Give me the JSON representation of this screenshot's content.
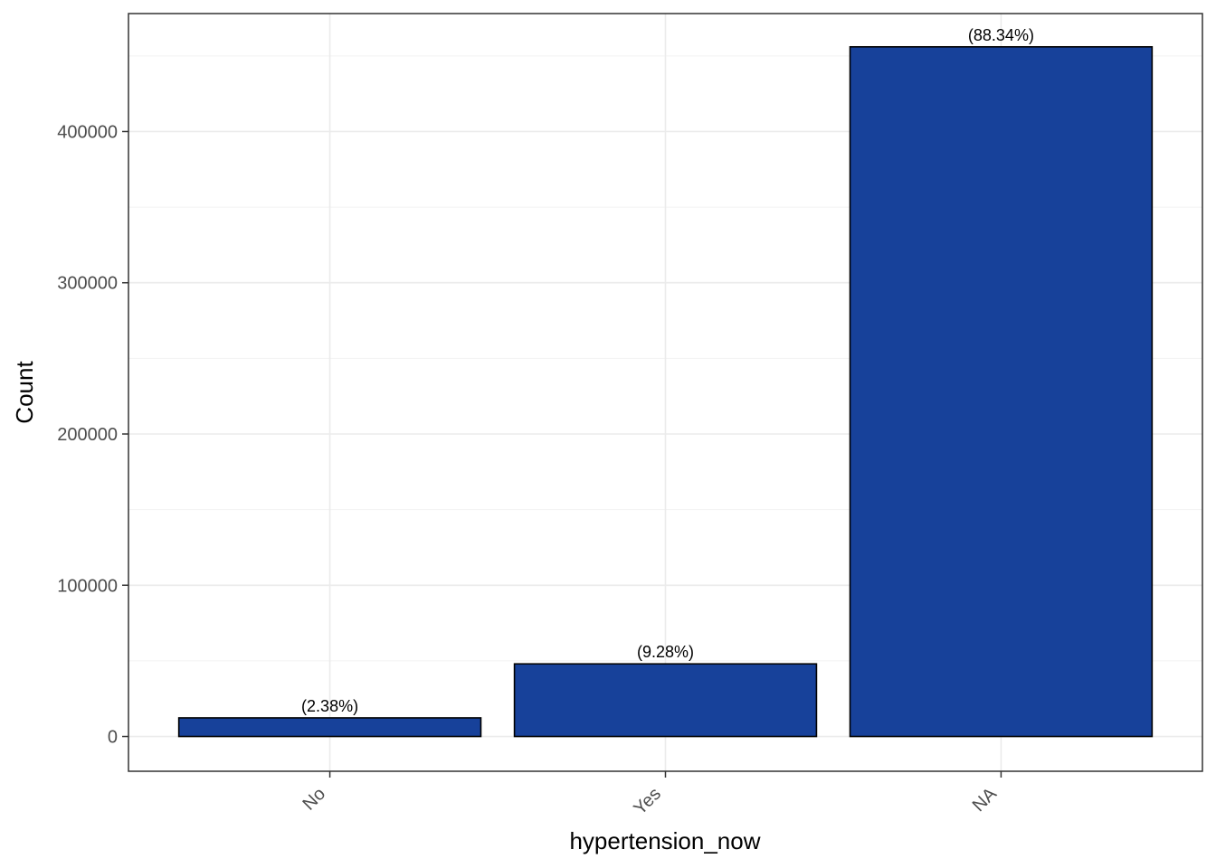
{
  "chart_data": {
    "type": "bar",
    "categories": [
      "No",
      "Yes",
      "NA"
    ],
    "values": [
      12300,
      48000,
      456000
    ],
    "labels": [
      "(2.38%)",
      "(9.28%)",
      "(88.34%)"
    ],
    "xlabel": "hypertension_now",
    "ylabel": "Count",
    "ylim": [
      -23000,
      478000
    ],
    "yticks": [
      0,
      100000,
      200000,
      300000,
      400000
    ],
    "ytick_labels": [
      "0",
      "100000",
      "200000",
      "300000",
      "400000"
    ],
    "grid": true,
    "bar_color": "#17419A",
    "bar_edge_color": "#000000"
  }
}
